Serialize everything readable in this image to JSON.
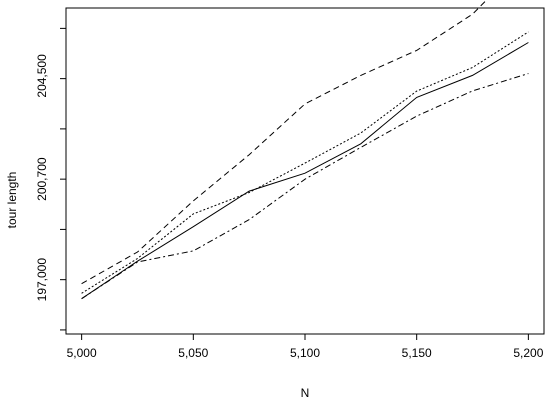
{
  "chart_data": {
    "type": "line",
    "title": "",
    "xlabel": "N",
    "ylabel": "tour length",
    "x": [
      5000,
      5025,
      5050,
      5075,
      5100,
      5125,
      5150,
      5175,
      5200
    ],
    "xticks": [
      5000,
      5050,
      5100,
      5150,
      5200
    ],
    "xtick_labels": [
      "5,000",
      "5,050",
      "5,100",
      "5,150",
      "5,200"
    ],
    "yticks": [
      197000,
      200700,
      204500
    ],
    "ytick_labels": [
      "197,000",
      "200,700",
      "204,500"
    ],
    "ylim": [
      195000,
      207000
    ],
    "xlim": [
      4993,
      5207
    ],
    "grid": false,
    "legend": "none",
    "series": [
      {
        "style": "solid",
        "values": [
          196300,
          197680,
          198950,
          200260,
          200920,
          202000,
          203710,
          204520,
          205730
        ]
      },
      {
        "style": "dashed",
        "values": [
          196850,
          198020,
          199900,
          201600,
          203470,
          204520,
          205440,
          206770,
          208850
        ]
      },
      {
        "style": "dotted",
        "values": [
          196500,
          197780,
          199420,
          200210,
          201290,
          202400,
          203940,
          204810,
          206120
        ]
      },
      {
        "style": "dashdot",
        "values": [
          196300,
          197650,
          198060,
          199210,
          200700,
          201870,
          203020,
          203950,
          204590
        ]
      }
    ]
  }
}
